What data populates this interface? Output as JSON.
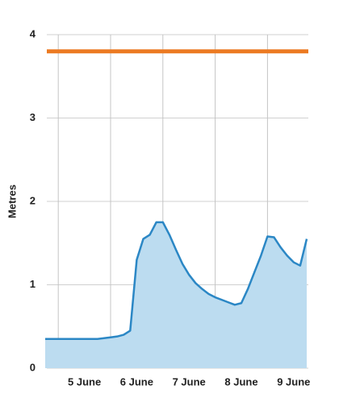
{
  "chart_data": {
    "type": "area",
    "y_label": "Metres",
    "categories": [
      null,
      null,
      null,
      null,
      null,
      null,
      "5 June",
      null,
      null,
      null,
      null,
      null,
      null,
      null,
      "6 June",
      null,
      null,
      null,
      null,
      null,
      null,
      null,
      "7 June",
      null,
      null,
      null,
      null,
      null,
      null,
      null,
      "8 June",
      null,
      null,
      null,
      null,
      null,
      null,
      null,
      "9 June",
      null,
      null
    ],
    "series": [
      {
        "color": "#2b87c5",
        "fill": "#bcdcf0",
        "values": [
          0.35,
          0.35,
          0.35,
          0.35,
          0.35,
          0.35,
          0.35,
          0.35,
          0.35,
          0.36,
          0.37,
          0.38,
          0.4,
          0.45,
          1.3,
          1.55,
          1.6,
          1.75,
          1.75,
          1.6,
          1.42,
          1.25,
          1.12,
          1.02,
          0.95,
          0.89,
          0.85,
          0.82,
          0.79,
          0.76,
          0.78,
          0.95,
          1.15,
          1.35,
          1.58,
          1.57,
          1.45,
          1.35,
          1.27,
          1.23,
          1.55
        ]
      }
    ],
    "reference_line": {
      "value": 3.8,
      "color": "#ec7a22"
    },
    "ylim": [
      0,
      4
    ],
    "yticks": [
      0,
      1,
      2,
      3,
      4
    ],
    "grid": true
  }
}
